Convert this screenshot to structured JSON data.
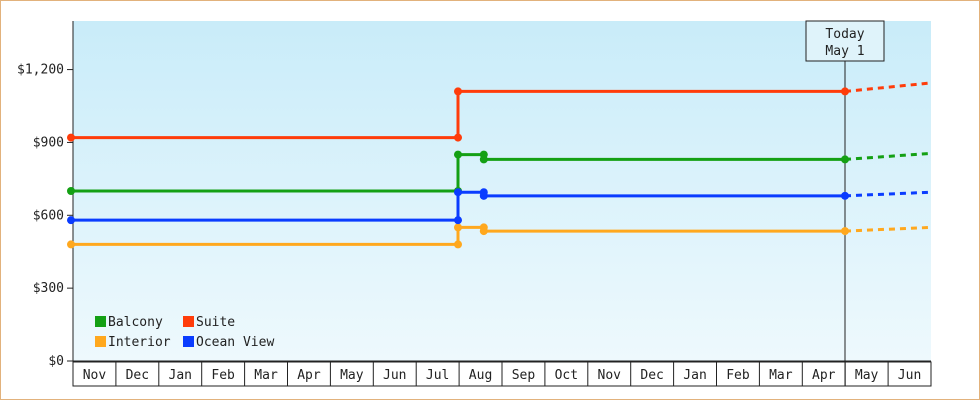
{
  "chart_data": {
    "type": "line",
    "title": "",
    "xlabel": "",
    "ylabel": "",
    "ylim": [
      0,
      1400
    ],
    "y_ticks": [
      0,
      300,
      600,
      900,
      1200
    ],
    "y_tick_labels": [
      "$0",
      "$300",
      "$600",
      "$900",
      "$1,200"
    ],
    "x_months": [
      "Nov",
      "Dec",
      "Jan",
      "Feb",
      "Mar",
      "Apr",
      "May",
      "Jun",
      "Jul",
      "Aug",
      "Sep",
      "Oct",
      "Nov",
      "Dec",
      "Jan",
      "Feb",
      "Mar",
      "Apr",
      "May",
      "Jun"
    ],
    "x_range": [
      0,
      20
    ],
    "grid": false,
    "legend_position": "bottom-left",
    "today_marker": {
      "x": 18,
      "line1": "Today",
      "line2": "May 1"
    },
    "series": [
      {
        "name": "Balcony",
        "color": "#14a014",
        "points": [
          [
            0,
            700
          ],
          [
            9,
            700
          ],
          [
            9,
            850
          ],
          [
            9.6,
            850
          ],
          [
            9.6,
            830
          ],
          [
            18,
            830
          ]
        ],
        "projection": [
          [
            18,
            830
          ],
          [
            20,
            855
          ]
        ]
      },
      {
        "name": "Suite",
        "color": "#ff3c0a",
        "points": [
          [
            0,
            920
          ],
          [
            9,
            920
          ],
          [
            9,
            1110
          ],
          [
            18,
            1110
          ]
        ],
        "projection": [
          [
            18,
            1110
          ],
          [
            20,
            1145
          ]
        ]
      },
      {
        "name": "Interior",
        "color": "#ffa81e",
        "points": [
          [
            0,
            480
          ],
          [
            9,
            480
          ],
          [
            9,
            550
          ],
          [
            9.6,
            550
          ],
          [
            9.6,
            535
          ],
          [
            18,
            535
          ]
        ],
        "projection": [
          [
            18,
            535
          ],
          [
            20,
            550
          ]
        ]
      },
      {
        "name": "Ocean View",
        "color": "#0a3cff",
        "points": [
          [
            0,
            580
          ],
          [
            9,
            580
          ],
          [
            9,
            695
          ],
          [
            9.6,
            695
          ],
          [
            9.6,
            680
          ],
          [
            18,
            680
          ]
        ],
        "projection": [
          [
            18,
            680
          ],
          [
            20,
            695
          ]
        ]
      }
    ]
  }
}
